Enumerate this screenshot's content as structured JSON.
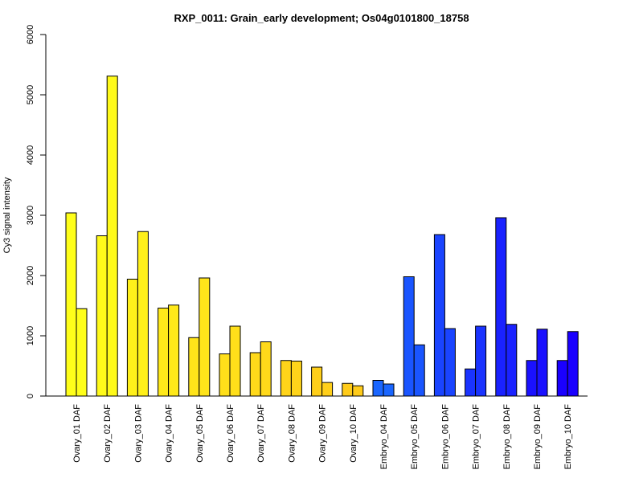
{
  "chart_data": {
    "type": "bar",
    "title": "RXP_0011: Grain_early development; Os04g0101800_18758",
    "xlabel": "",
    "ylabel": "Cy3 signal intensity",
    "ylim": [
      0,
      6000
    ],
    "yticks": [
      "0",
      "1000",
      "2000",
      "3000",
      "4000",
      "5000",
      "6000"
    ],
    "grid": false,
    "legend": "none",
    "categories": [
      "Ovary_01 DAF",
      "Ovary_02 DAF",
      "Ovary_03 DAF",
      "Ovary_04 DAF",
      "Ovary_05 DAF",
      "Ovary_06 DAF",
      "Ovary_07 DAF",
      "Ovary_08 DAF",
      "Ovary_09 DAF",
      "Ovary_10 DAF",
      "Embryo_04 DAF",
      "Embryo_05 DAF",
      "Embryo_06 DAF",
      "Embryo_07 DAF",
      "Embryo_08 DAF",
      "Embryo_09 DAF",
      "Embryo_10 DAF"
    ],
    "series": [
      {
        "values": [
          3040,
          2660,
          1940,
          1460,
          970,
          700,
          720,
          590,
          480,
          210,
          260,
          1980,
          2680,
          450,
          2960,
          590,
          590
        ]
      },
      {
        "values": [
          1450,
          5310,
          2730,
          1510,
          1960,
          1160,
          900,
          580,
          225,
          170,
          200,
          850,
          1120,
          1160,
          1190,
          1110,
          1070
        ]
      }
    ],
    "category_colors": [
      "#FFFF1A",
      "#FFFA1A",
      "#FFF01A",
      "#FFE91A",
      "#FFE41A",
      "#FFDF1A",
      "#FFD91A",
      "#FFD41A",
      "#FFCF1A",
      "#FFCB1A",
      "#1A66FF",
      "#1A55FF",
      "#1A44FF",
      "#1A33FF",
      "#1A22FF",
      "#1A11FF",
      "#1A00FF"
    ]
  }
}
